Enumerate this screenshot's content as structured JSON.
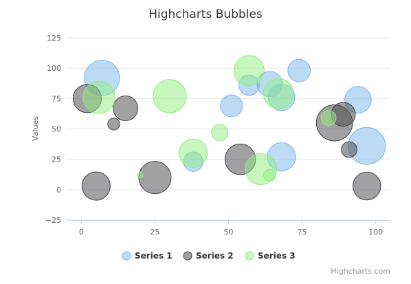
{
  "chart_data": {
    "type": "scatter",
    "subtype": "bubble",
    "title": "Highcharts Bubbles",
    "xlabel": "",
    "ylabel": "Values",
    "xlim": [
      -5,
      105
    ],
    "ylim": [
      -25,
      125
    ],
    "xticks": [
      0,
      25,
      50,
      75,
      100
    ],
    "yticks": [
      -25,
      0,
      25,
      50,
      75,
      100,
      125
    ],
    "grid": "horizontal",
    "legend_position": "bottom-center",
    "credits": "Highcharts.com",
    "series": [
      {
        "name": "Series 1",
        "color": "#7cb5ec",
        "points": [
          {
            "x": 7,
            "y": 92,
            "z": 95
          },
          {
            "x": 38,
            "y": 23,
            "z": 30
          },
          {
            "x": 51,
            "y": 69,
            "z": 38
          },
          {
            "x": 57,
            "y": 86,
            "z": 33
          },
          {
            "x": 64,
            "y": 87,
            "z": 50
          },
          {
            "x": 68,
            "y": 27,
            "z": 62
          },
          {
            "x": 68,
            "y": 76,
            "z": 55
          },
          {
            "x": 74,
            "y": 98,
            "z": 40
          },
          {
            "x": 94,
            "y": 74,
            "z": 55
          },
          {
            "x": 97,
            "y": 36,
            "z": 105
          }
        ]
      },
      {
        "name": "Series 2",
        "color": "#434348",
        "points": [
          {
            "x": 2,
            "y": 75,
            "z": 62
          },
          {
            "x": 5,
            "y": 3,
            "z": 62
          },
          {
            "x": 11,
            "y": 54,
            "z": 12
          },
          {
            "x": 15,
            "y": 67,
            "z": 48
          },
          {
            "x": 25,
            "y": 10,
            "z": 80
          },
          {
            "x": 54,
            "y": 25,
            "z": 72
          },
          {
            "x": 86,
            "y": 55,
            "z": 100
          },
          {
            "x": 89,
            "y": 62,
            "z": 45
          },
          {
            "x": 91,
            "y": 33,
            "z": 20
          },
          {
            "x": 97,
            "y": 3,
            "z": 60
          }
        ]
      },
      {
        "name": "Series 3",
        "color": "#90ed7d",
        "points": [
          {
            "x": 6,
            "y": 76,
            "z": 78
          },
          {
            "x": 20,
            "y": 12,
            "z": 3
          },
          {
            "x": 30,
            "y": 77,
            "z": 85
          },
          {
            "x": 38,
            "y": 30,
            "z": 62
          },
          {
            "x": 47,
            "y": 47,
            "z": 22
          },
          {
            "x": 57,
            "y": 98,
            "z": 70
          },
          {
            "x": 61,
            "y": 17,
            "z": 75
          },
          {
            "x": 64,
            "y": 12,
            "z": 12
          },
          {
            "x": 67,
            "y": 79,
            "z": 70
          },
          {
            "x": 84,
            "y": 59,
            "z": 18
          }
        ]
      }
    ]
  }
}
